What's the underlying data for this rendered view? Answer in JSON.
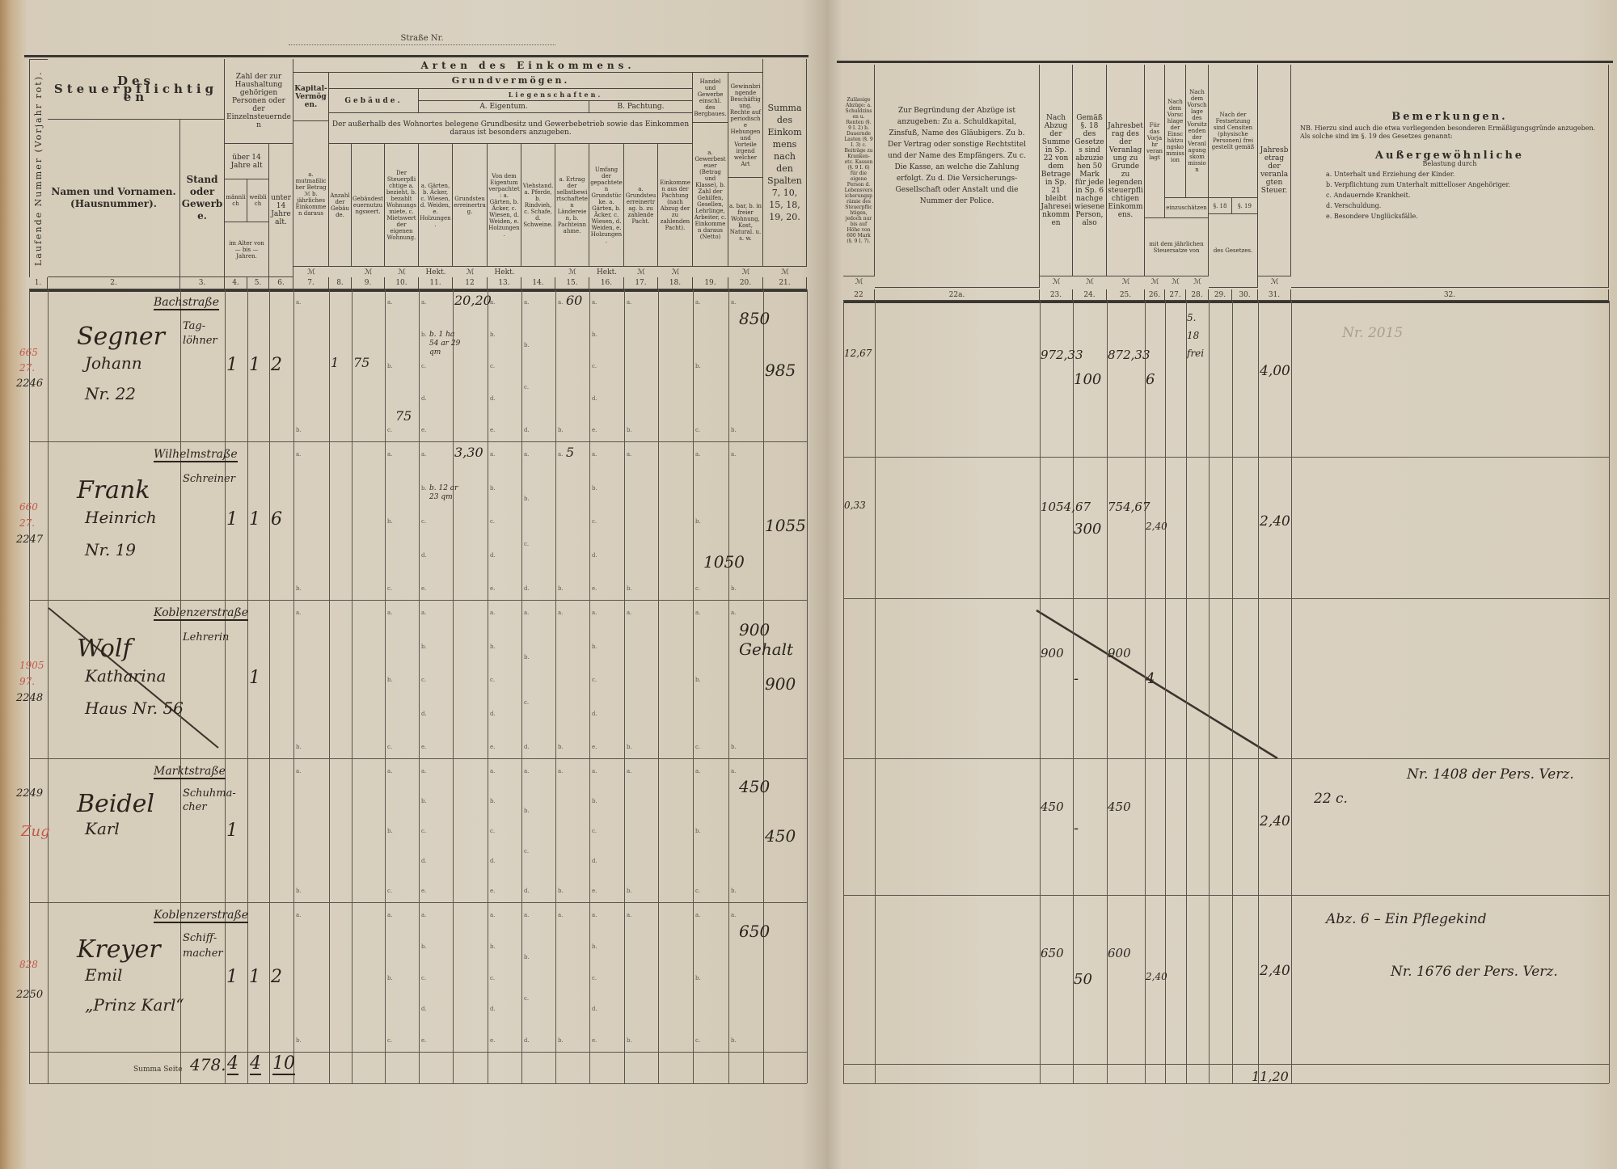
{
  "street_label": "Straße Nr.",
  "left_header": {
    "running_number": "Laufende Nummer (Vorjahr rot).",
    "taxpayer_title": "Des Steuerpflichtigen",
    "names": "Namen und Vornamen. (Hausnummer).",
    "occupation": "Stand oder Gewerbe.",
    "household": "Zahl der zur Haushaltung gehörigen Personen oder der Einzelnsteuernden",
    "over14": "über 14 Jahre alt",
    "male": "männlich",
    "female": "weiblich",
    "age_range": "im Alter von — bis — Jahren.",
    "under14": "unter 14 Jahre alt.",
    "income_types": "Arten des Einkommens.",
    "capital": "Kapital-Vermögen.",
    "capital_sub": "a. mutmaßlicher Betrag ℳ b. jährliches Einkommen daraus",
    "land_property": "Grundvermögen.",
    "buildings": "Gebäude.",
    "real_estate": "Liegenschaften.",
    "ownership": "A. Eigentum.",
    "lease": "B. Pachtung.",
    "note": "Der außerhalb des Wohnortes belegene Grundbesitz und Gewerbebetrieb sowie das Einkommen daraus ist besonders anzugeben.",
    "trade": "Handel und Gewerbe einschl. des Bergbaues.",
    "employment": "Gewinnbringende Beschäftigung. Rechte auf periodische Hebungen und Vorteile irgend welcher Art",
    "total": "Summa des Einkommens nach den Spalten 7, 10, 15, 18, 19, 20.",
    "col8": "Anzahl der Gebäude.",
    "col9": "Gebäudesteuernutzungswert.",
    "col10": "Der Steuerpflichtige a. bezieht, b. bezahlt Wohnungsmiete, c. Mietswert der eigenen Wohnung.",
    "col11": "a. Gärten, b. Äcker, c. Wiesen, d. Weiden, e. Holzungen.",
    "col12": "Grundsteuerreinertrag.",
    "col13": "Von dem Eigentum verpachtet: a. Gärten, b. Äcker, c. Wiesen, d. Weiden, e. Holzungen.",
    "col14": "Viehstand. a. Pferde, b. Rindvieh, c. Schafe, d. Schweine.",
    "col15": "a. Ertrag der selbstbewirtschafteten Ländereien, b. Pachteinnahme.",
    "col16": "Umfang der gepachteten Grundstücke. a. Gärten, b. Äcker, c. Wiesen, d. Weiden, e. Holzungen.",
    "col17": "a. Grundsteuerreinertrag. b. zu zahlende Pacht.",
    "col18": "Einkommen aus der Pachtung (nach Abzug der zu zahlenden Pacht).",
    "col19": "a. Gewerbesteuer (Betrag und Klasse), b. Zahl der Gehilfen, Gesellen, Lehrlinge, Arbeiter, c. Einkommen daraus (Netto)",
    "col20": "a. bar, b. in freier Wohnung, Kost, Natural. u. s. w.",
    "unit_mark": "ℳ",
    "unit_hect": "Hekt.",
    "numbers": [
      "1.",
      "2.",
      "3.",
      "4.",
      "5.",
      "6.",
      "7.",
      "8.",
      "9.",
      "10.",
      "11.",
      "12",
      "13.",
      "14.",
      "15.",
      "16.",
      "17.",
      "18.",
      "19.",
      "20.",
      "21."
    ]
  },
  "right_header": {
    "deductions": "Zulässige Abzüge: a. Schuldzinsen u. Renten (§. 9 I. 2) b. Dauernde Lasten (§. 9 I. 3) c. Beiträge zu Kranken- etc. Kassen (§. 9 I. 6) für die eigene Person d. Lebensversicherungsprämie des Steuerpflichtigen, jedoch nur bis auf Höhe von 600 Mark (§. 9 I. 7).",
    "justification": "Zur Begründung der Abzüge ist anzugeben: Zu a. Schuldkapital, Zinsfuß, Name des Gläubigers. Zu b. Der Vertrag oder sonstige Rechtstitel und der Name des Empfängers. Zu c. Die Kasse, an welche die Zahlung erfolgt. Zu d. Die Versicherungs-Gesellschaft oder Anstalt und die Nummer der Police.",
    "col23": "Nach Abzug der Summe in Sp. 22 von dem Betrage in Sp. 21 bleibt Jahreseinkommen",
    "col24": "Gemäß §. 18 des Gesetzes sind abzuziehen 50 Mark für jede in Sp. 6 nachgewiesene Person, also",
    "col25": "Jahresbetrag des der Veranlagung zu Grunde zu legenden steuerpflichtigen Einkommens.",
    "col26": "Für das Vorjahr veranlagt",
    "col27": "Nach dem Vorschlage der Einschätzungskommission",
    "col28": "Nach dem Vorschlage des Vorsitzenden der Veranlagungskommission",
    "assess": "einzuschätzen",
    "rate": "mit dem jährlichen Steuersatze von",
    "col29_30": "Nach der Festsetzung sind Censiten (physische Personen) frei gestellt gemäß",
    "par18": "§. 18",
    "par19": "§. 19",
    "law": "des Gesetzes.",
    "col31": "Jahresbetrag der veranlagten Steuer.",
    "remarks_title": "Bemerkungen.",
    "remarks_nb": "NB. Hierzu sind auch die etwa vorliegenden besonderen Ermäßigungsgründe anzugeben. Als solche sind im §. 19 des Gesetzes genannt:",
    "extraordinary": "Außergewöhnliche",
    "burden": "Belastung durch",
    "reasons": [
      "a. Unterhalt und Erziehung der Kinder.",
      "b. Verpflichtung zum Unterhalt mittelloser Angehöriger.",
      "c. Andauernde Krankheit.",
      "d. Verschuldung.",
      "e. Besondere Unglücksfälle."
    ],
    "unit_mark": "ℳ",
    "numbers": [
      "22",
      "22a.",
      "23.",
      "24.",
      "25.",
      "26.",
      "27.",
      "28.",
      "29.",
      "30.",
      "31.",
      "32."
    ]
  },
  "sub_letters": [
    "a.",
    "b.",
    "c.",
    "d.",
    "e."
  ],
  "entries": [
    {
      "street": "Bachstraße",
      "prev_number": [
        "665",
        "27."
      ],
      "number": "2246",
      "name": [
        "Segner",
        "Johann",
        "Nr. 22"
      ],
      "occupation": [
        "Tag-",
        "löhner"
      ],
      "left": {
        "c4": "1",
        "c5": "1",
        "c6": "2",
        "c8": "1",
        "c9": "75",
        "c10": "75",
        "c11": "b. 1 ha 54 ar 29 qm",
        "c12": "20,20",
        "c15": "60",
        "c20": "850",
        "c21": "985"
      },
      "right": {
        "c22": "12,67",
        "c23": "972,33",
        "c24": "100",
        "c25": "872,33",
        "c26": "6",
        "c28": "5. 18 frei",
        "c31": "4,00"
      },
      "remarks": [
        "Nr. 2015"
      ],
      "crossed_out": false
    },
    {
      "street": "Wilhelmstraße",
      "prev_number": [
        "660",
        "27."
      ],
      "number": "2247",
      "name": [
        "Frank",
        "Heinrich",
        "Nr. 19"
      ],
      "occupation": [
        "Schreiner"
      ],
      "left": {
        "c4": "1",
        "c5": "1",
        "c6": "6",
        "c11": "b. 12 ar 23 qm",
        "c12": "3,30",
        "c15": "5",
        "c19": "1050",
        "c21": "1055"
      },
      "right": {
        "c22": "0,33",
        "c23": "1054,67",
        "c24": "300",
        "c25": "754,67",
        "c26": "2,40",
        "c31": "2,40"
      },
      "remarks": [],
      "crossed_out": false
    },
    {
      "street": "Koblenzerstraße",
      "prev_number": [
        "1905",
        "97."
      ],
      "number": "2248",
      "name": [
        "Wolf",
        "Katharina",
        "Haus Nr. 56"
      ],
      "occupation": [
        "Lehrerin"
      ],
      "left": {
        "c5": "1",
        "c20": "900 Gehalt",
        "c21": "900"
      },
      "right": {
        "c23": "900",
        "c24": "-",
        "c25": "900",
        "c26": "4"
      },
      "remarks": [],
      "crossed_out": true
    },
    {
      "street": "Marktstraße",
      "prev_number": [],
      "number": "2249",
      "red_mark": "Zug",
      "name": [
        "Beidel",
        "Karl"
      ],
      "occupation": [
        "Schuhma-",
        "cher"
      ],
      "left": {
        "c4": "1",
        "c20": "450",
        "c21": "450"
      },
      "right": {
        "c23": "450",
        "c24": "-",
        "c25": "450",
        "c31": "2,40"
      },
      "remarks": [
        "22 c.",
        "Nr. 1408 der Pers. Verz."
      ],
      "crossed_out": false
    },
    {
      "street": "Koblenzerstraße",
      "prev_number": [
        "828"
      ],
      "number": "2250",
      "name": [
        "Kreyer",
        "Emil",
        "„Prinz Karl“"
      ],
      "occupation": [
        "Schiff-",
        "macher"
      ],
      "left": {
        "c4": "1",
        "c5": "1",
        "c6": "2",
        "c20": "650"
      },
      "right": {
        "c23": "650",
        "c24": "50",
        "c25": "600",
        "c26": "2,40",
        "c31": "2,40"
      },
      "remarks": [
        "Abz. 6 – Ein Pflegekind",
        "Nr. 1676 der Pers. Verz."
      ],
      "crossed_out": false
    }
  ],
  "summary": {
    "label": "Summa Seite",
    "page_total": "478.",
    "persons": [
      "4",
      "4",
      "10"
    ],
    "tax_total": "11,20"
  },
  "colors": {
    "paper": "#d9d1c1",
    "ink": "#2a241d",
    "red_ink": "#c2584c",
    "print": "#2f2c27"
  }
}
